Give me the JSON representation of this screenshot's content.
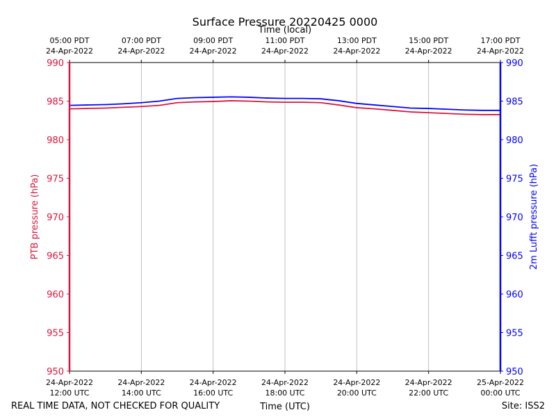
{
  "chart_data": {
    "type": "line",
    "title": "Surface Pressure 20220425 0000",
    "top_axis_label": "Time (local)",
    "xlabel": "Time (UTC)",
    "ylabel_left": "PTB pressure (hPa)",
    "ylabel_right": "2m Lufft pressure (hPa)",
    "footer_left": "REAL TIME DATA, NOT CHECKED FOR QUALITY",
    "footer_right": "Site: ISS2",
    "xlim_hours": [
      12,
      24
    ],
    "ylim": [
      950,
      990
    ],
    "y_ticks": [
      950,
      955,
      960,
      965,
      970,
      975,
      980,
      985,
      990
    ],
    "x_ticks_hours": [
      12,
      14,
      16,
      18,
      20,
      22,
      24
    ],
    "x_tick_labels_bottom": [
      [
        "24-Apr-2022",
        "12:00 UTC"
      ],
      [
        "24-Apr-2022",
        "14:00 UTC"
      ],
      [
        "24-Apr-2022",
        "16:00 UTC"
      ],
      [
        "24-Apr-2022",
        "18:00 UTC"
      ],
      [
        "24-Apr-2022",
        "20:00 UTC"
      ],
      [
        "24-Apr-2022",
        "22:00 UTC"
      ],
      [
        "25-Apr-2022",
        "00:00 UTC"
      ]
    ],
    "x_tick_labels_top": [
      [
        "05:00 PDT",
        "24-Apr-2022"
      ],
      [
        "07:00 PDT",
        "24-Apr-2022"
      ],
      [
        "09:00 PDT",
        "24-Apr-2022"
      ],
      [
        "11:00 PDT",
        "24-Apr-2022"
      ],
      [
        "13:00 PDT",
        "24-Apr-2022"
      ],
      [
        "15:00 PDT",
        "24-Apr-2022"
      ],
      [
        "17:00 PDT",
        "24-Apr-2022"
      ]
    ],
    "grid": "vertical",
    "colors": {
      "left_axis": "#dc143c",
      "right_axis": "#0000ff"
    },
    "series": [
      {
        "name": "PTB pressure",
        "axis": "left",
        "color": "#dc143c",
        "x": [
          12.0,
          12.5,
          13.0,
          13.5,
          14.0,
          14.5,
          15.0,
          15.5,
          16.0,
          16.5,
          17.0,
          17.5,
          18.0,
          18.5,
          19.0,
          19.5,
          20.0,
          20.5,
          21.0,
          21.5,
          22.0,
          22.5,
          23.0,
          23.5,
          24.0
        ],
        "values": [
          984.0,
          984.05,
          984.1,
          984.2,
          984.3,
          984.45,
          984.8,
          984.9,
          984.95,
          985.05,
          985.0,
          984.9,
          984.85,
          984.85,
          984.8,
          984.5,
          984.15,
          984.0,
          983.8,
          983.6,
          983.5,
          983.4,
          983.3,
          983.25,
          983.25
        ]
      },
      {
        "name": "2m Lufft pressure",
        "axis": "right",
        "color": "#0000ff",
        "x": [
          12.0,
          12.5,
          13.0,
          13.5,
          14.0,
          14.5,
          15.0,
          15.5,
          16.0,
          16.5,
          17.0,
          17.5,
          18.0,
          18.5,
          19.0,
          19.5,
          20.0,
          20.5,
          21.0,
          21.5,
          22.0,
          22.5,
          23.0,
          23.5,
          24.0
        ],
        "values": [
          984.45,
          984.5,
          984.55,
          984.65,
          984.8,
          985.0,
          985.35,
          985.45,
          985.5,
          985.55,
          985.5,
          985.4,
          985.35,
          985.35,
          985.3,
          985.05,
          984.7,
          984.5,
          984.3,
          984.1,
          984.05,
          983.95,
          983.85,
          983.8,
          983.8
        ]
      }
    ]
  }
}
